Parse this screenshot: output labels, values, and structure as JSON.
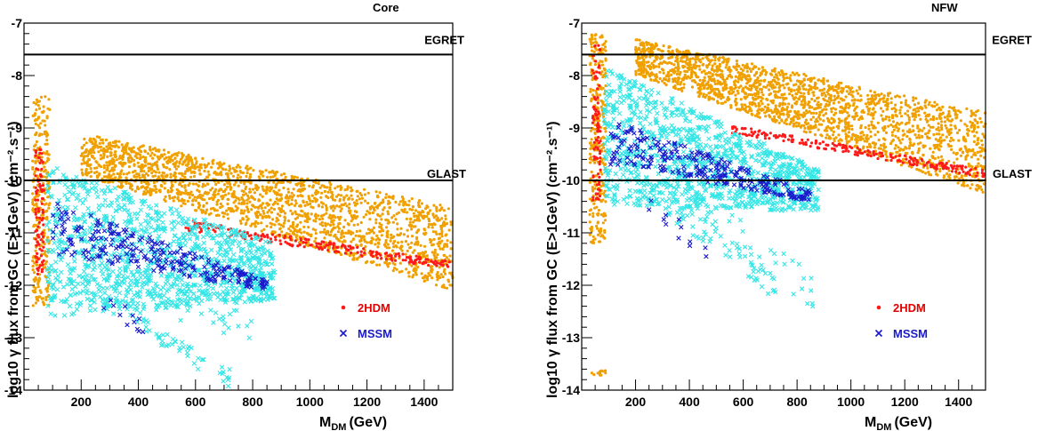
{
  "colors": {
    "2HDM_bulk": "#f0a000",
    "2HDM_highlight": "#ff1a1a",
    "MSSM_light": "#33e6e6",
    "MSSM": "#1a1acc",
    "axis": "#000000"
  },
  "chart_data": [
    {
      "type": "scatter",
      "title": "Core",
      "xlabel": "M",
      "xlabel_sub": "DM",
      "xlabel_unit": "(GeV)",
      "ylabel": "log10 γ flux from GC  (E>1GeV) (cm⁻².s⁻¹)",
      "xlim": [
        0,
        1500
      ],
      "ylim": [
        -14,
        -7
      ],
      "xticks": [
        200,
        400,
        600,
        800,
        1000,
        1200,
        1400
      ],
      "xticklabels": [
        "200",
        "400",
        "600",
        "800",
        "1000",
        "1200",
        "1400"
      ],
      "yticks": [
        -14,
        -13,
        -12,
        -11,
        -10,
        -9,
        -8,
        -7
      ],
      "yticklabels": [
        "-14",
        "-13",
        "-12",
        "-11",
        "-10",
        "-9",
        "-8",
        "-7"
      ],
      "reference_lines": [
        {
          "name": "EGRET",
          "y": -7.6
        },
        {
          "name": "GLAST",
          "y": -10.0
        }
      ],
      "legend": {
        "placement": "lower-right",
        "entries": [
          {
            "label": "2HDM",
            "marker": "dot",
            "color": "#ff1a1a"
          },
          {
            "label": "MSSM",
            "marker": "x",
            "color": "#1a1acc"
          }
        ]
      },
      "series": [
        {
          "name": "2HDM",
          "marker": "dot",
          "color": "#f0a000",
          "regions": [
            {
              "kind": "band",
              "x": [
                200,
                1500
              ],
              "upper": [
                -9.1,
                -10.5
              ],
              "lower": [
                -9.9,
                -12.1
              ],
              "n": 2000
            },
            {
              "kind": "column",
              "x": [
                30,
                90
              ],
              "y": [
                -12.4,
                -8.4
              ],
              "n": 280
            }
          ]
        },
        {
          "name": "2HDM",
          "marker": "dot",
          "color": "#ff1a1a",
          "regions": [
            {
              "kind": "band",
              "x": [
                560,
                1500
              ],
              "upper": [
                -10.75,
                -11.55
              ],
              "lower": [
                -10.95,
                -11.7
              ],
              "n": 220
            },
            {
              "kind": "column",
              "x": [
                40,
                70
              ],
              "y": [
                -11.8,
                -9.4
              ],
              "n": 90
            }
          ]
        },
        {
          "name": "MSSM",
          "marker": "x",
          "color": "#33e6e6",
          "regions": [
            {
              "kind": "band",
              "x": [
                80,
                880
              ],
              "upper": [
                -9.7,
                -11.2
              ],
              "lower": [
                -12.6,
                -12.3
              ],
              "n": 1100
            },
            {
              "kind": "band",
              "x": [
                200,
                720
              ],
              "upper": [
                -11.8,
                -13.6
              ],
              "lower": [
                -12.2,
                -14.0
              ],
              "n": 70
            },
            {
              "kind": "band",
              "x": [
                350,
                820
              ],
              "upper": [
                -11.8,
                -12.6
              ],
              "lower": [
                -12.3,
                -13.2
              ],
              "n": 40
            }
          ]
        },
        {
          "name": "MSSM",
          "marker": "x",
          "color": "#1a1acc",
          "regions": [
            {
              "kind": "band",
              "x": [
                100,
                850
              ],
              "upper": [
                -10.4,
                -11.9
              ],
              "lower": [
                -11.4,
                -12.1
              ],
              "n": 260
            },
            {
              "kind": "band",
              "x": [
                250,
                480
              ],
              "upper": [
                -11.9,
                -13.0
              ],
              "lower": [
                -12.4,
                -13.2
              ],
              "n": 12
            }
          ]
        }
      ]
    },
    {
      "type": "scatter",
      "title": "NFW",
      "xlabel": "M",
      "xlabel_sub": "DM",
      "xlabel_unit": "(GeV)",
      "ylabel": "log10 γ flux from GC  (E>1GeV) (cm⁻².s⁻¹)",
      "xlim": [
        0,
        1500
      ],
      "ylim": [
        -14,
        -7
      ],
      "xticks": [
        200,
        400,
        600,
        800,
        1000,
        1200,
        1400
      ],
      "xticklabels": [
        "200",
        "400",
        "600",
        "800",
        "1000",
        "1200",
        "1400"
      ],
      "yticks": [
        -14,
        -13,
        -12,
        -11,
        -10,
        -9,
        -8,
        -7
      ],
      "yticklabels": [
        "-14",
        "-13",
        "-12",
        "-11",
        "-10",
        "-9",
        "-8",
        "-7"
      ],
      "reference_lines": [
        {
          "name": "EGRET",
          "y": -7.6
        },
        {
          "name": "GLAST",
          "y": -10.0
        }
      ],
      "legend": {
        "placement": "lower-right",
        "entries": [
          {
            "label": "2HDM",
            "marker": "dot",
            "color": "#ff1a1a"
          },
          {
            "label": "MSSM",
            "marker": "x",
            "color": "#1a1acc"
          }
        ]
      },
      "series": [
        {
          "name": "2HDM",
          "marker": "dot",
          "color": "#f0a000",
          "regions": [
            {
              "kind": "band",
              "x": [
                200,
                1500
              ],
              "upper": [
                -7.3,
                -8.7
              ],
              "lower": [
                -8.0,
                -10.25
              ],
              "n": 2000
            },
            {
              "kind": "column",
              "x": [
                30,
                90
              ],
              "y": [
                -11.2,
                -7.2
              ],
              "n": 280
            },
            {
              "kind": "band",
              "x": [
                35,
                90
              ],
              "upper": [
                -13.62,
                -13.62
              ],
              "lower": [
                -13.72,
                -13.72
              ],
              "n": 14
            }
          ]
        },
        {
          "name": "2HDM",
          "marker": "dot",
          "color": "#ff1a1a",
          "regions": [
            {
              "kind": "band",
              "x": [
                560,
                1500
              ],
              "upper": [
                -8.95,
                -9.8
              ],
              "lower": [
                -9.1,
                -9.95
              ],
              "n": 220
            },
            {
              "kind": "column",
              "x": [
                40,
                70
              ],
              "y": [
                -10.4,
                -7.4
              ],
              "n": 90
            }
          ]
        },
        {
          "name": "MSSM",
          "marker": "x",
          "color": "#33e6e6",
          "regions": [
            {
              "kind": "band",
              "x": [
                80,
                880
              ],
              "upper": [
                -7.8,
                -9.8
              ],
              "lower": [
                -10.5,
                -10.6
              ],
              "n": 1100
            },
            {
              "kind": "band",
              "x": [
                200,
                720
              ],
              "upper": [
                -9.8,
                -11.8
              ],
              "lower": [
                -10.2,
                -12.3
              ],
              "n": 70
            },
            {
              "kind": "band",
              "x": [
                350,
                860
              ],
              "upper": [
                -10.0,
                -11.6
              ],
              "lower": [
                -10.4,
                -12.5
              ],
              "n": 40
            }
          ]
        },
        {
          "name": "MSSM",
          "marker": "x",
          "color": "#1a1acc",
          "regions": [
            {
              "kind": "band",
              "x": [
                100,
                850
              ],
              "upper": [
                -8.8,
                -10.2
              ],
              "lower": [
                -9.7,
                -10.4
              ],
              "n": 260
            },
            {
              "kind": "band",
              "x": [
                250,
                480
              ],
              "upper": [
                -10.2,
                -11.3
              ],
              "lower": [
                -10.7,
                -11.6
              ],
              "n": 12
            }
          ]
        }
      ]
    }
  ]
}
